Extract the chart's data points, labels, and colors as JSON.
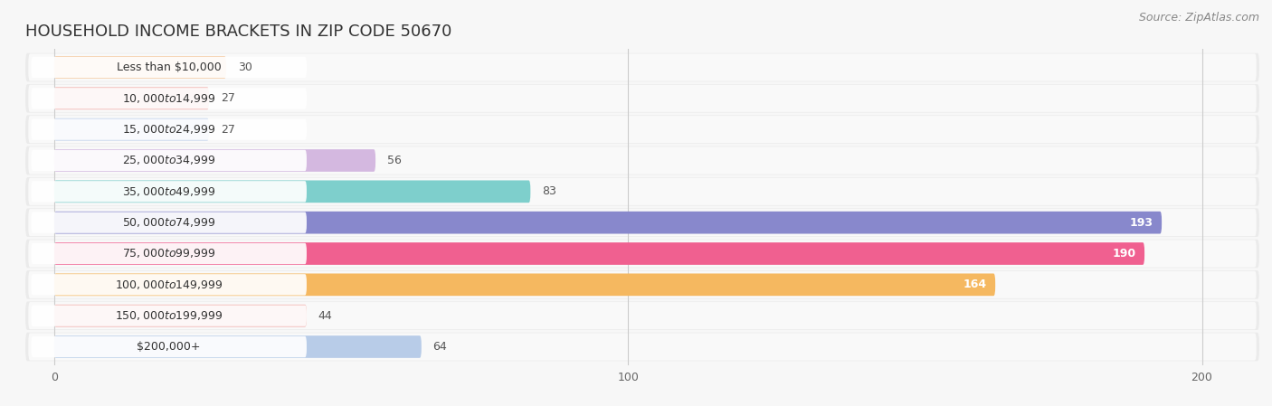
{
  "title": "HOUSEHOLD INCOME BRACKETS IN ZIP CODE 50670",
  "source": "Source: ZipAtlas.com",
  "categories": [
    "Less than $10,000",
    "$10,000 to $14,999",
    "$15,000 to $24,999",
    "$25,000 to $34,999",
    "$35,000 to $49,999",
    "$50,000 to $74,999",
    "$75,000 to $99,999",
    "$100,000 to $149,999",
    "$150,000 to $199,999",
    "$200,000+"
  ],
  "values": [
    30,
    27,
    27,
    56,
    83,
    193,
    190,
    164,
    44,
    64
  ],
  "bar_colors": [
    "#f5c9a0",
    "#f0a8a4",
    "#b8cce8",
    "#d4b8e0",
    "#7ecfcc",
    "#8888cc",
    "#f06090",
    "#f5b860",
    "#f0a8a4",
    "#b8cce8"
  ],
  "xlim": [
    -5,
    210
  ],
  "xticks": [
    0,
    100,
    200
  ],
  "background_color": "#f7f7f7",
  "row_bg_color": "#ebebeb",
  "title_fontsize": 13,
  "source_fontsize": 9,
  "label_fontsize": 9,
  "value_fontsize": 9
}
